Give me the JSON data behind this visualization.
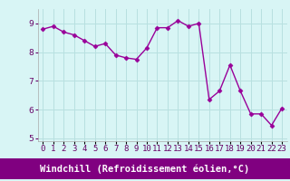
{
  "x": [
    0,
    1,
    2,
    3,
    4,
    5,
    6,
    7,
    8,
    9,
    10,
    11,
    12,
    13,
    14,
    15,
    16,
    17,
    18,
    19,
    20,
    21,
    22,
    23
  ],
  "y": [
    8.8,
    8.9,
    8.7,
    8.6,
    8.4,
    8.2,
    8.3,
    7.9,
    7.8,
    7.75,
    8.15,
    8.85,
    8.85,
    9.1,
    8.9,
    9.0,
    6.35,
    6.65,
    7.55,
    6.65,
    5.85,
    5.85,
    5.45,
    6.05
  ],
  "line_color": "#990099",
  "marker": "D",
  "marker_size": 2.5,
  "bg_color": "#d8f5f5",
  "grid_color": "#b8e0e0",
  "spine_color": "#aaaaaa",
  "xlabel": "Windchill (Refroidissement éolien,°C)",
  "xlabel_bg": "#800080",
  "xlabel_color": "#ffffff",
  "ylim": [
    4.9,
    9.5
  ],
  "xlim": [
    -0.5,
    23.5
  ],
  "yticks": [
    5,
    6,
    7,
    8,
    9
  ],
  "xticks": [
    0,
    1,
    2,
    3,
    4,
    5,
    6,
    7,
    8,
    9,
    10,
    11,
    12,
    13,
    14,
    15,
    16,
    17,
    18,
    19,
    20,
    21,
    22,
    23
  ],
  "tick_label_fontsize": 6.5,
  "xlabel_fontsize": 7.5,
  "line_width": 1.0
}
